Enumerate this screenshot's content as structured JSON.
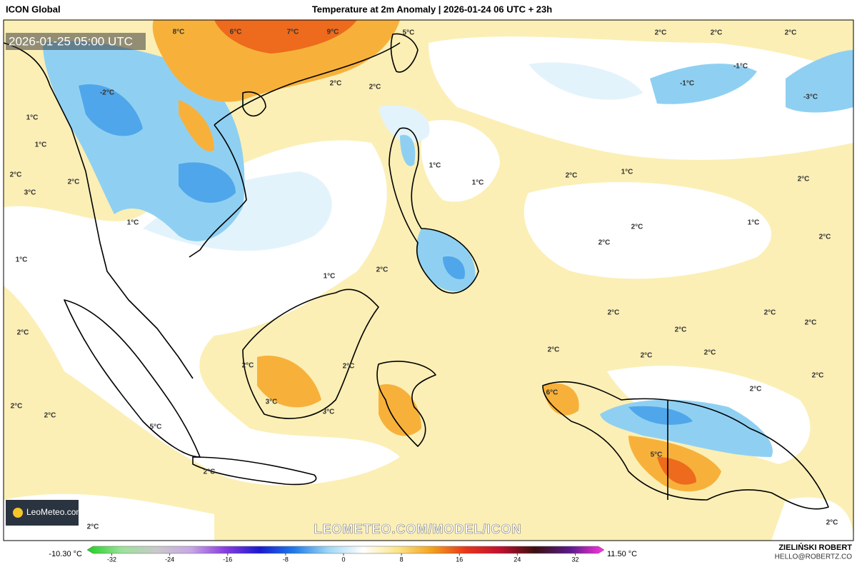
{
  "header": {
    "model": "ICON Global",
    "title": "Temperature at 2m Anomaly | 2026-01-24 06 UTC + 23h"
  },
  "map": {
    "valid_time": "2026-01-25 05:00 UTC",
    "contour_labels": [
      "8°C",
      "6°C",
      "7°C",
      "9°C",
      "5°C",
      "2°C",
      "2°C",
      "2°C",
      "-1°C",
      "-1°C",
      "-3°C",
      "2°C",
      "2°C",
      "-2°C",
      "1°C",
      "1°C",
      "1°C",
      "1°C",
      "2°C",
      "1°C",
      "2°C",
      "2°C",
      "2°C",
      "3°C",
      "1°C",
      "2°C",
      "1°C",
      "2°C",
      "2°C",
      "1°C",
      "1°C",
      "2°C",
      "2°C",
      "2°C",
      "2°C",
      "2°C",
      "2°C",
      "2°C",
      "2°C",
      "2°C",
      "2°C",
      "2°C",
      "2°C",
      "2°C",
      "6°C",
      "3°C",
      "3°C",
      "2°C",
      "2°C",
      "2°C",
      "5°C",
      "2°C",
      "2°C",
      "5°C"
    ],
    "watermark": "LEOMETEO.COM/MODEL/ICON",
    "logo": "LeoMeteo.com"
  },
  "colorbar": {
    "min_label": "-10.30 °C",
    "max_label": "11.50 °C",
    "ticks": [
      -32,
      -24,
      -16,
      -8,
      0,
      8,
      16,
      24,
      32
    ],
    "colors": [
      "#1fd01f",
      "#9be29b",
      "#c9c9c9",
      "#c9a8e6",
      "#8a3de0",
      "#1a1ad0",
      "#1e7be8",
      "#9fd8f4",
      "#ffffff",
      "#fbe58a",
      "#f4a21c",
      "#e8341a",
      "#c01030",
      "#3a1010",
      "#5a1a8a",
      "#ff33dd"
    ]
  },
  "credits": {
    "author": "ZIELIŃSKI ROBERT",
    "email": "HELLO@ROBERTZ.CO"
  }
}
